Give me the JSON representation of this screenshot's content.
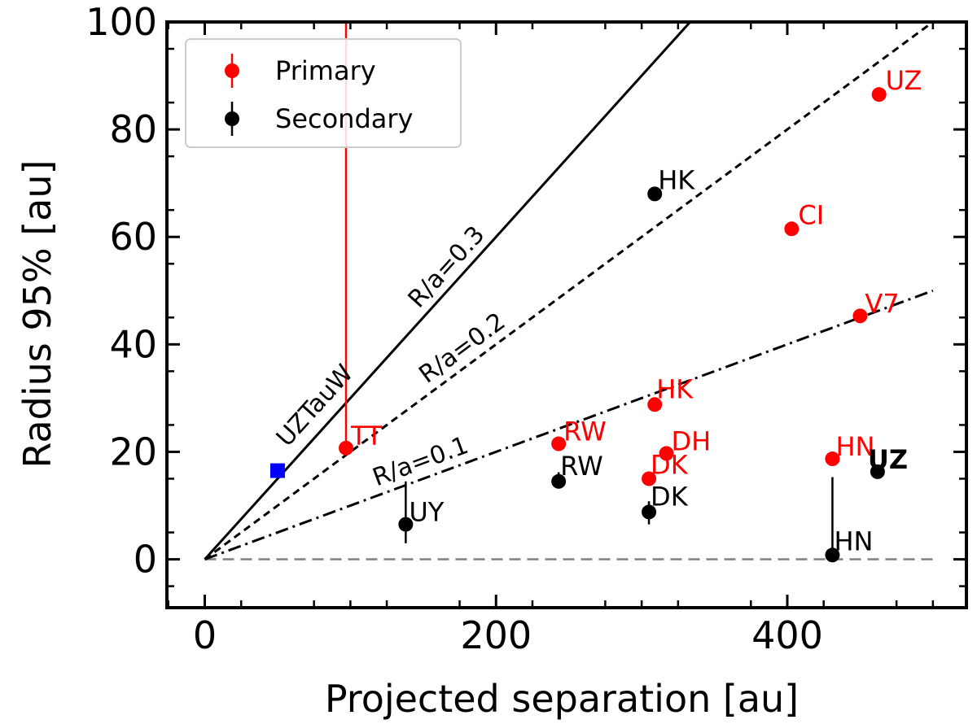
{
  "chart_data": {
    "type": "scatter",
    "xlabel": "Projected separation [au]",
    "ylabel": "Radius 95% [au]",
    "xlim": [
      -26,
      523
    ],
    "ylim": [
      -9,
      100
    ],
    "xticks": [
      0,
      200,
      400
    ],
    "yticks": [
      0,
      20,
      40,
      60,
      80,
      100
    ],
    "grid": false,
    "legend": {
      "placement": "top-left",
      "entries": [
        {
          "label": "Primary",
          "color": "#ff0000"
        },
        {
          "label": "Secondary",
          "color": "#000000"
        }
      ]
    },
    "colors": {
      "primary": "#ff0000",
      "secondary": "#000000",
      "special": "#0000ff",
      "zero_line": "#808080"
    },
    "reference_lines": [
      {
        "label": "R/a=0.3",
        "slope": 0.3,
        "style": "solid",
        "x_end": 333
      },
      {
        "label": "R/a=0.2",
        "slope": 0.2,
        "style": "dashed",
        "x_end": 500
      },
      {
        "label": "R/a=0.1",
        "slope": 0.1,
        "style": "dashdot",
        "x_end": 500
      }
    ],
    "zero_line": {
      "y": 0,
      "style": "dashed"
    },
    "series": [
      {
        "name": "Primary",
        "points": [
          {
            "label": "UZ",
            "x": 463,
            "y": 86.5
          },
          {
            "label": "CI",
            "x": 403,
            "y": 61.5
          },
          {
            "label": "V7",
            "x": 450,
            "y": 45.3
          },
          {
            "label": "HK",
            "x": 309,
            "y": 28.8
          },
          {
            "label": "TT",
            "x": 97,
            "y": 20.7
          },
          {
            "label": "RW",
            "x": 243,
            "y": 21.5
          },
          {
            "label": "DH",
            "x": 317,
            "y": 19.7
          },
          {
            "label": "DK",
            "x": 305,
            "y": 15.0
          },
          {
            "label": "HN",
            "x": 431,
            "y": 18.7
          }
        ],
        "errors": [
          {
            "label": "TT",
            "lo": 20.7,
            "hi": 100
          }
        ]
      },
      {
        "name": "Secondary",
        "points": [
          {
            "label": "HK",
            "x": 309,
            "y": 68.0
          },
          {
            "label": "RW",
            "x": 243,
            "y": 14.5
          },
          {
            "label": "DK",
            "x": 305,
            "y": 8.8
          },
          {
            "label": "UY",
            "x": 138,
            "y": 6.5
          },
          {
            "label": "UZ",
            "x": 462,
            "y": 16.3
          },
          {
            "label": "HN",
            "x": 431,
            "y": 0.8
          }
        ],
        "errors": [
          {
            "label": "RW",
            "lo": 13.3,
            "hi": 16.2
          },
          {
            "label": "DK",
            "lo": 6.5,
            "hi": 10.8
          },
          {
            "label": "UY",
            "lo": 3.0,
            "hi": 14.5
          },
          {
            "label": "UZ",
            "lo": 15.3,
            "hi": 17.3
          },
          {
            "label": "HN",
            "lo": 0.8,
            "hi": 15.3
          }
        ]
      }
    ],
    "special_points": [
      {
        "label": "UZTauW",
        "x": 50,
        "y": 16.5,
        "marker": "square"
      }
    ]
  }
}
